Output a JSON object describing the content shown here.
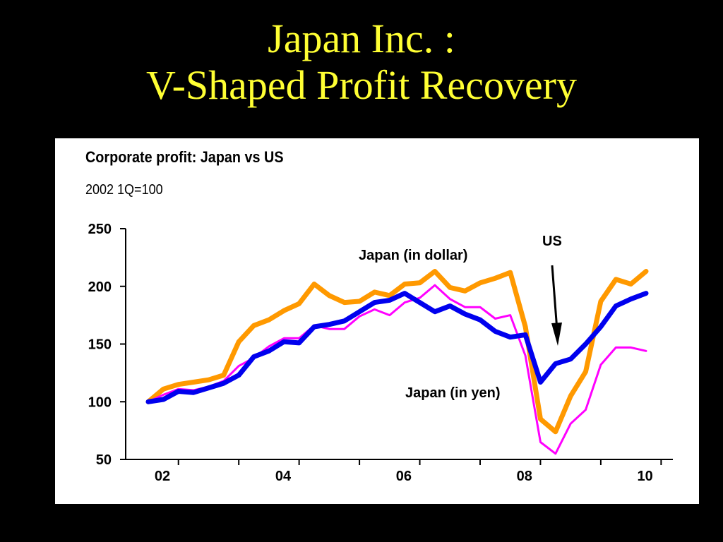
{
  "slide": {
    "title_line1": "Japan Inc. :",
    "title_line2": "V-Shaped Profit Recovery",
    "title_color": "#ffff33",
    "background": "#000000"
  },
  "chart_data": {
    "type": "line",
    "title": "Corporate profit: Japan vs US",
    "subtitle": "2002 1Q=100",
    "xlabel": "",
    "ylabel": "",
    "ylim": [
      50,
      250
    ],
    "yticks": [
      50,
      100,
      150,
      200,
      250
    ],
    "x_ticks": [
      "02",
      "04",
      "06",
      "08",
      "10"
    ],
    "x_start": "2002 1Q",
    "grid": false,
    "series": [
      {
        "name": "Japan (in dollar)",
        "color": "#ff9900",
        "values": [
          100,
          111,
          115,
          117,
          119,
          123,
          152,
          166,
          171,
          179,
          185,
          202,
          192,
          186,
          187,
          195,
          192,
          202,
          203,
          213,
          199,
          196,
          203,
          207,
          212,
          165,
          85,
          74,
          105,
          126,
          187,
          206,
          202,
          213
        ]
      },
      {
        "name": "US",
        "color": "#0000ee",
        "values": [
          100,
          102,
          109,
          108,
          112,
          116,
          123,
          139,
          144,
          152,
          151,
          165,
          167,
          170,
          178,
          186,
          188,
          194,
          186,
          178,
          183,
          176,
          171,
          161,
          156,
          158,
          117,
          133,
          137,
          150,
          165,
          183,
          189,
          194
        ]
      },
      {
        "name": "Japan (in yen)",
        "color": "#ff00ff",
        "values": [
          100,
          106,
          111,
          110,
          113,
          118,
          131,
          138,
          148,
          155,
          155,
          166,
          163,
          163,
          174,
          180,
          175,
          186,
          190,
          201,
          189,
          182,
          182,
          172,
          175,
          140,
          65,
          55,
          81,
          93,
          132,
          147,
          147,
          144
        ]
      }
    ],
    "annotations": [
      {
        "text": "Japan (in dollar)"
      },
      {
        "text": "US"
      },
      {
        "text": "Japan (in yen)"
      }
    ]
  }
}
